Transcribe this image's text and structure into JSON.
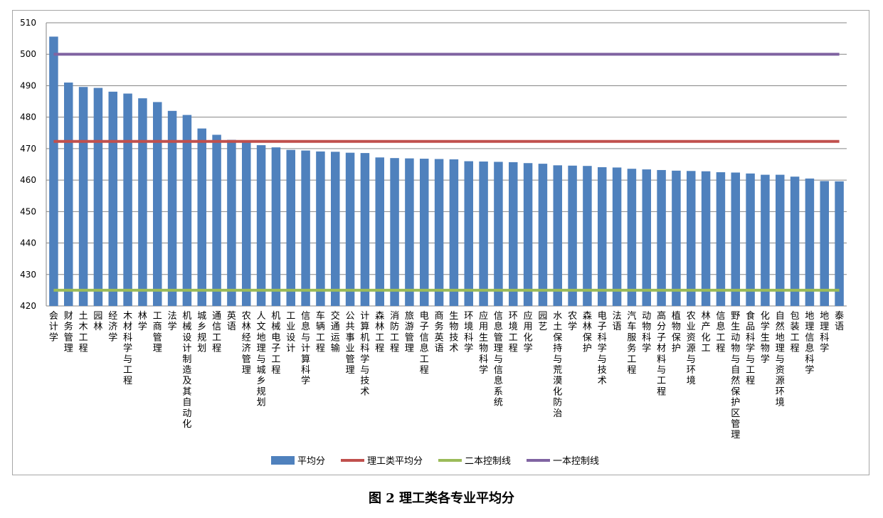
{
  "caption": "图 2 理工类各专业平均分",
  "chart_data": {
    "type": "bar",
    "ylim": [
      420,
      510
    ],
    "yticks": [
      420,
      430,
      440,
      450,
      460,
      470,
      480,
      490,
      500,
      510
    ],
    "grid": true,
    "legend_position": "bottom-center",
    "categories": [
      "会计学",
      "财务管理",
      "土木工程",
      "园林",
      "经济学",
      "木材科学与工程",
      "林学",
      "工商管理",
      "法学",
      "机械设计制造及其自动化",
      "城乡规划",
      "通信工程",
      "英语",
      "农林经济管理",
      "人文地理与城乡规划",
      "机械电子工程",
      "工业设计",
      "信息与计算科学",
      "车辆工程",
      "交通运输",
      "公共事业管理",
      "计算机科学与技术",
      "森林工程",
      "消防工程",
      "旅游管理",
      "电子信息工程",
      "商务英语",
      "生物技术",
      "环境科学",
      "应用生物科学",
      "信息管理与信息系统",
      "环境工程",
      "应用化学",
      "园艺",
      "水土保持与荒漠化防治",
      "农学",
      "森林保护",
      "电子科学与技术",
      "法语",
      "汽车服务工程",
      "动物科学",
      "高分子材料与工程",
      "植物保护",
      "农业资源与环境",
      "林产化工",
      "信息工程",
      "野生动物与自然保护区管理",
      "食品科学与工程",
      "化学生物学",
      "自然地理与资源环境",
      "包装工程",
      "地理信息科学",
      "地理科学",
      "泰语"
    ],
    "series": [
      {
        "name": "平均分",
        "type": "bar",
        "color": "#4f81bd",
        "values": [
          505.6,
          491.0,
          489.6,
          489.3,
          488.1,
          487.5,
          486.0,
          484.8,
          482.0,
          480.7,
          476.4,
          474.4,
          472.8,
          472.3,
          471.1,
          470.4,
          469.6,
          469.4,
          469.1,
          469.0,
          468.7,
          468.6,
          467.2,
          467.0,
          466.9,
          466.8,
          466.7,
          466.6,
          466.0,
          465.9,
          465.8,
          465.7,
          465.4,
          465.2,
          464.7,
          464.6,
          464.5,
          464.1,
          464.0,
          463.6,
          463.4,
          463.2,
          463.0,
          462.9,
          462.8,
          462.5,
          462.4,
          462.1,
          461.7,
          461.7,
          461.1,
          460.5,
          459.7,
          459.6
        ]
      },
      {
        "name": "理工类平均分",
        "type": "line",
        "color": "#c0504d",
        "value": 472.3
      },
      {
        "name": "二本控制线",
        "type": "line",
        "color": "#9bbb59",
        "value": 425
      },
      {
        "name": "一本控制线",
        "type": "line",
        "color": "#8064a2",
        "value": 500
      }
    ]
  }
}
